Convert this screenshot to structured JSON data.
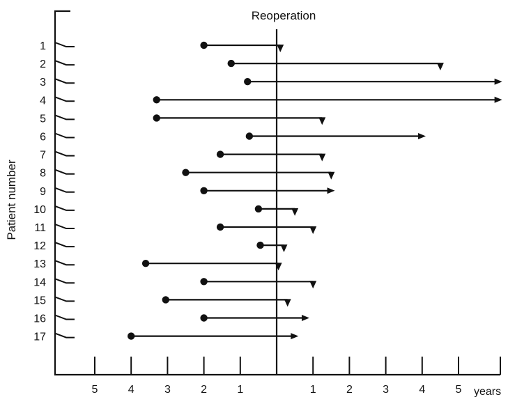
{
  "chart_data": {
    "type": "timeline",
    "xlabel": "years",
    "ylabel": "Patient number",
    "reference_label": "Reoperation",
    "x_tick_labels": [
      "5",
      "4",
      "3",
      "2",
      "1",
      "1",
      "2",
      "3",
      "4",
      "5"
    ],
    "xlim": [
      -6.2,
      6.2
    ],
    "patient_labels": [
      "1",
      "2",
      "3",
      "4",
      "5",
      "6",
      "7",
      "8",
      "9",
      "10",
      "11",
      "12",
      "13",
      "14",
      "15",
      "16",
      "17"
    ],
    "patients": [
      {
        "id": 1,
        "start": -2.0,
        "end": 0.1,
        "end_marker": "triangle"
      },
      {
        "id": 2,
        "start": -1.25,
        "end": 4.5,
        "end_marker": "triangle"
      },
      {
        "id": 3,
        "start": -0.8,
        "end": 6.2,
        "end_marker": "arrow"
      },
      {
        "id": 4,
        "start": -3.3,
        "end": 6.2,
        "end_marker": "arrow"
      },
      {
        "id": 5,
        "start": -3.3,
        "end": 1.25,
        "end_marker": "triangle"
      },
      {
        "id": 6,
        "start": -0.75,
        "end": 4.1,
        "end_marker": "arrow"
      },
      {
        "id": 7,
        "start": -1.55,
        "end": 1.25,
        "end_marker": "triangle"
      },
      {
        "id": 8,
        "start": -2.5,
        "end": 1.5,
        "end_marker": "triangle"
      },
      {
        "id": 9,
        "start": -2.0,
        "end": 1.6,
        "end_marker": "arrow"
      },
      {
        "id": 10,
        "start": -0.5,
        "end": 0.5,
        "end_marker": "triangle"
      },
      {
        "id": 11,
        "start": -1.55,
        "end": 1.0,
        "end_marker": "triangle"
      },
      {
        "id": 12,
        "start": -0.45,
        "end": 0.2,
        "end_marker": "triangle"
      },
      {
        "id": 13,
        "start": -3.6,
        "end": 0.05,
        "end_marker": "triangle"
      },
      {
        "id": 14,
        "start": -2.0,
        "end": 1.0,
        "end_marker": "triangle"
      },
      {
        "id": 15,
        "start": -3.05,
        "end": 0.3,
        "end_marker": "triangle"
      },
      {
        "id": 16,
        "start": -2.0,
        "end": 0.9,
        "end_marker": "arrow"
      },
      {
        "id": 17,
        "start": -4.0,
        "end": 0.6,
        "end_marker": "arrow"
      }
    ]
  }
}
